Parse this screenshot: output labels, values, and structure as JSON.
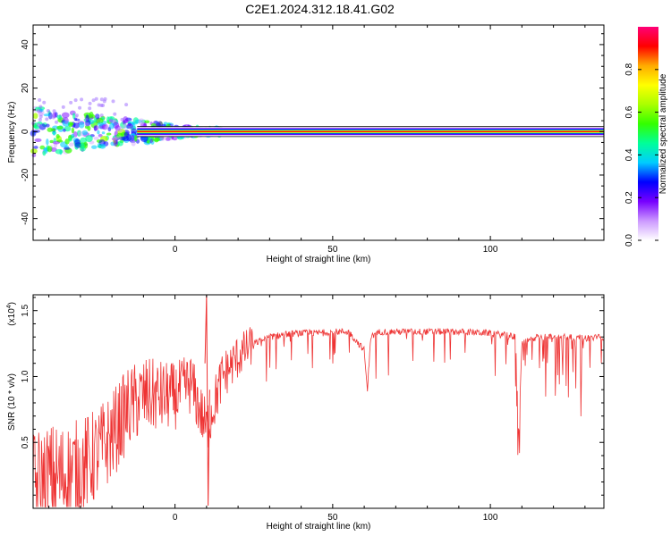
{
  "title": "C2E1.2024.312.18.41.G02",
  "chart_data": [
    {
      "type": "heatmap",
      "xlabel": "Height of straight line (km)",
      "ylabel": "Frequency (Hz)",
      "xlim": [
        -45,
        136
      ],
      "ylim": [
        -50,
        49
      ],
      "xticks": [
        0,
        50,
        100
      ],
      "yticks": [
        -40,
        -20,
        0,
        20,
        40
      ],
      "colorbar": {
        "label": "Normalized spectral amplitude",
        "range": [
          0.0,
          1.0
        ],
        "ticks": [
          0.0,
          0.2,
          0.4,
          0.6,
          0.8
        ],
        "colors": [
          "#ffffff",
          "#cc99ff",
          "#7700ff",
          "#0000ff",
          "#00ccff",
          "#00ff99",
          "#33ff00",
          "#aaff00",
          "#ffff00",
          "#ffaa00",
          "#ff0000",
          "#ff0077"
        ]
      },
      "ridge": {
        "frequency": 0,
        "from_height": -45,
        "to_height": 136,
        "peak_amplitude": 0.95
      }
    },
    {
      "type": "line",
      "xlabel": "Height of straight line (km)",
      "ylabel": "SNR (10 * v/v)",
      "y_multiplier": "(x10^4)",
      "xlim": [
        -45,
        136
      ],
      "ylim": [
        0.0,
        1.62
      ],
      "xticks": [
        0,
        50,
        100
      ],
      "yticks": [
        0.5,
        1.0,
        1.5
      ],
      "line_color": "#ee3333",
      "series": [
        {
          "x": [
            -45,
            -40,
            -35,
            -30,
            -25,
            -20,
            -15,
            -10,
            -5,
            0,
            5,
            10,
            15,
            20,
            25,
            30,
            35,
            40,
            45,
            50,
            55,
            60,
            61,
            62,
            65,
            70,
            80,
            90,
            100,
            108,
            109,
            110,
            115,
            120,
            125,
            130,
            136
          ],
          "y": [
            0.15,
            0.22,
            0.25,
            0.3,
            0.4,
            0.55,
            0.75,
            0.85,
            0.85,
            0.85,
            0.95,
            0.6,
            1.0,
            1.15,
            1.25,
            1.3,
            1.32,
            1.33,
            1.33,
            1.34,
            1.34,
            1.2,
            0.88,
            1.3,
            1.34,
            1.34,
            1.34,
            1.34,
            1.33,
            1.3,
            0.55,
            1.25,
            1.3,
            1.3,
            1.3,
            1.29,
            1.3
          ]
        }
      ]
    }
  ]
}
